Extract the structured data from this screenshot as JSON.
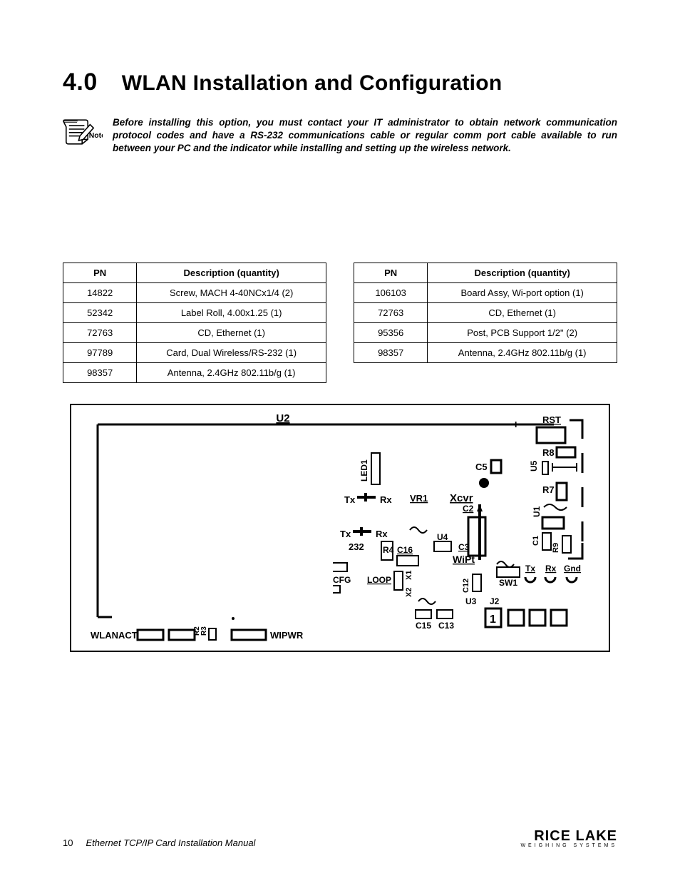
{
  "heading": {
    "number": "4.0",
    "title": "WLAN Installation and Configuration"
  },
  "note": {
    "label": "Note",
    "text": "Before installing this option, you must contact your IT administrator to obtain network communication protocol codes and have a RS-232 communications cable or regular comm port cable available to run between your PC and the indicator while installing and setting up the wireless network."
  },
  "tables": {
    "left": {
      "columns": [
        "PN",
        "Description (quantity)"
      ],
      "col_widths_pct": [
        28,
        72
      ],
      "rows": [
        [
          "14822",
          "Screw, MACH 4-40NCx1/4 (2)"
        ],
        [
          "52342",
          "Label Roll, 4.00x1.25 (1)"
        ],
        [
          "72763",
          "CD, Ethernet (1)"
        ],
        [
          "97789",
          "Card, Dual Wireless/RS-232 (1)"
        ],
        [
          "98357",
          "Antenna, 2.4GHz 802.11b/g (1)"
        ]
      ]
    },
    "right": {
      "columns": [
        "PN",
        "Description (quantity)"
      ],
      "col_widths_pct": [
        28,
        72
      ],
      "rows": [
        [
          "106103",
          "Board Assy, Wi-port option (1)"
        ],
        [
          "72763",
          "CD, Ethernet (1)"
        ],
        [
          "95356",
          "Post, PCB Support 1/2\" (2)"
        ],
        [
          "98357",
          "Antenna, 2.4GHz 802.11b/g (1)"
        ]
      ]
    }
  },
  "diagram": {
    "border_color": "#000000",
    "stroke_width": 2,
    "font_size_small": 12,
    "font_size_label": 13,
    "labels": {
      "U2": "U2",
      "RST": "RST",
      "R8": "R8",
      "U5": "U5",
      "R7": "R7",
      "U1": "U1",
      "C5": "C5",
      "LED1": "LED1",
      "Tx": "Tx",
      "Rx": "Rx",
      "VR1": "VR1",
      "Xcvr": "Xcvr",
      "C2": "C2",
      "num232": "232",
      "R4": "R4",
      "C16": "C16",
      "U4": "U4",
      "C3": "C3",
      "WiPt": "WiPt",
      "C1": "C1",
      "R9": "R9",
      "SW1": "SW1",
      "Gnd": "Gnd",
      "CFG": "CFG",
      "LOOP": "LOOP",
      "X1": "X1",
      "X2": "X2",
      "C12": "C12",
      "U3": "U3",
      "J2": "J2",
      "C15": "C15",
      "C13": "C13",
      "one": "1",
      "WLANACT": "WLANACT",
      "WIPWR": "WIPWR",
      "R2": "R2",
      "R3": "R3",
      "plus": "+"
    }
  },
  "footer": {
    "page": "10",
    "title": "Ethernet TCP/IP Card Installation Manual",
    "brand": "RICE LAKE",
    "brand_sub": "WEIGHING SYSTEMS"
  },
  "colors": {
    "text": "#000000",
    "background": "#ffffff"
  }
}
